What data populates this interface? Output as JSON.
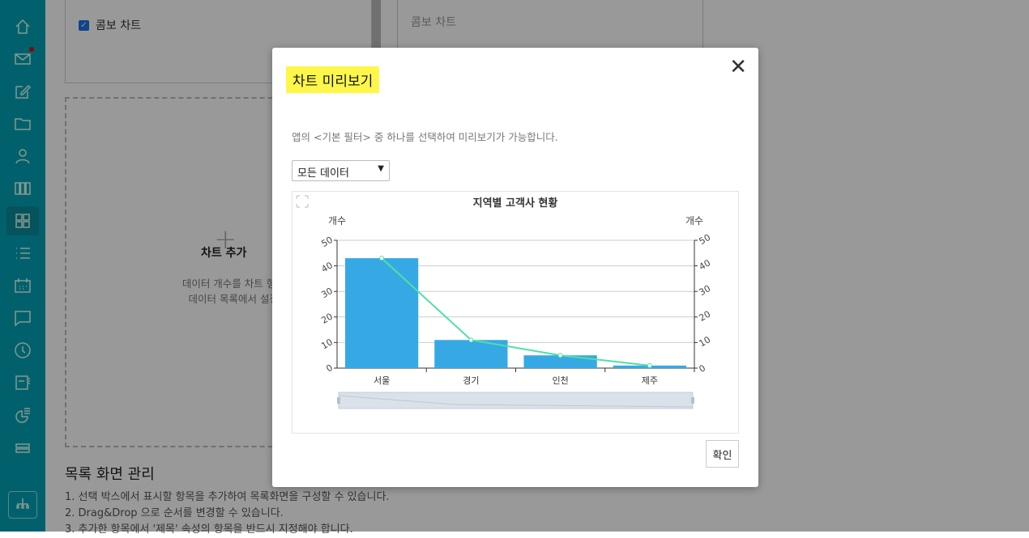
{
  "sidebar": {
    "icons": [
      "home-icon",
      "mail-icon",
      "edit-icon",
      "folder-icon",
      "user-icon",
      "columns-icon",
      "grid-icon",
      "list-icon",
      "calendar-icon",
      "chat-icon",
      "clock-icon",
      "board-icon",
      "pie-chart-icon",
      "stack-icon"
    ],
    "active": "grid-icon",
    "bottom_icon": "org-chart-icon"
  },
  "background": {
    "combo_checkbox_label": "콤보 차트",
    "combo_checkbox_checked": true,
    "right_box_title": "콤보 차트",
    "add_chart_label": "차트 추가",
    "add_chart_desc1": "데이터 개수를 차트 형태로 확인할 수",
    "add_chart_desc2": "데이터 목록에서 설정한 차트를 확",
    "list_manage_title": "목록 화면 관리",
    "list_manage_items": [
      "1. 선택 박스에서 표시할 항목을 추가하여 목록화면을 구성할 수 있습니다.",
      "2. Drag&Drop 으로 순서를 변경할 수 있습니다.",
      "3. 추가한 항목에서 '제목' 속성의 항목을 반드시 지정해야 합니다."
    ]
  },
  "modal": {
    "title": "차트 미리보기",
    "description": "앱의 <기본 필터> 중 하나를 선택하여 미리보기가 가능합니다.",
    "filter_selected": "모든 데이터",
    "confirm_label": "확인"
  },
  "chart_data": {
    "type": "combo",
    "title": "지역별 고객사 현황",
    "categories": [
      "서울",
      "경기",
      "인천",
      "제주"
    ],
    "series": [
      {
        "type": "bar",
        "values": [
          43,
          11,
          5,
          1
        ],
        "color": "#36a9e4"
      },
      {
        "type": "line",
        "values": [
          43,
          11,
          5,
          1
        ],
        "color": "#4ee0a6"
      }
    ],
    "ylabel_left": "개수",
    "ylabel_right": "개수",
    "ylim": [
      0,
      50
    ],
    "yticks": [
      0,
      10,
      20,
      30,
      40,
      50
    ],
    "grid": true
  }
}
